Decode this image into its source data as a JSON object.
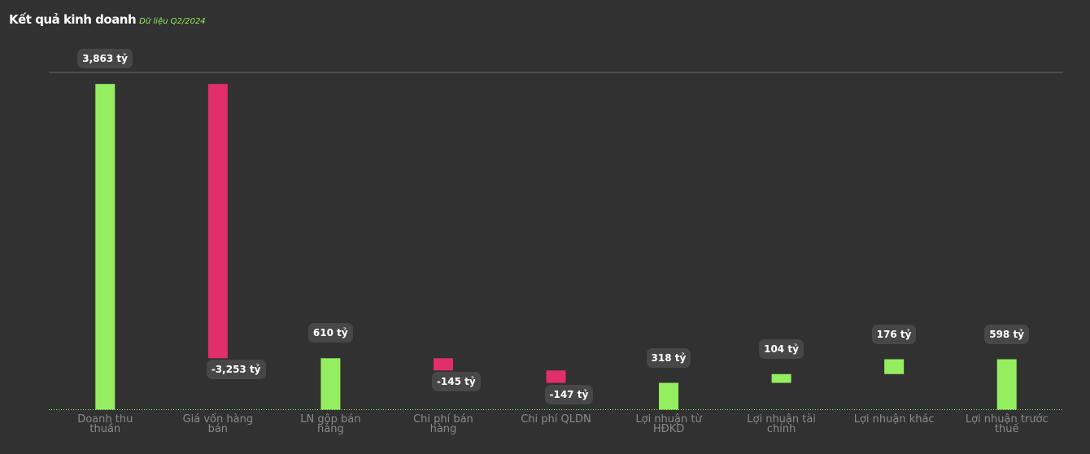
{
  "chart_data": {
    "type": "waterfall",
    "title": "Kết quả kinh doanh",
    "subtitle": "Dữ liệu Q2/2024",
    "categories": [
      "Doanh thu thuần",
      "Giá vốn hàng bán",
      "LN gộp bán hàng",
      "Chi phí bán hàng",
      "Chi phí QLDN",
      "Lợi nhuận từ HĐKD",
      "Lợi nhuận tài chính",
      "Lợi nhuận khác",
      "Lợi nhuận trước thuế"
    ],
    "values": [
      3863,
      -3253,
      610,
      -145,
      -147,
      318,
      104,
      176,
      598
    ],
    "value_labels": [
      "3,863 tỷ",
      "-3,253 tỷ",
      "610 tỷ",
      "-145 tỷ",
      "-147 tỷ",
      "318 tỷ",
      "104 tỷ",
      "176 tỷ",
      "598 tỷ"
    ],
    "measure": [
      "absolute",
      "relative",
      "total",
      "relative",
      "relative",
      "total",
      "relative",
      "relative",
      "total"
    ],
    "colors": {
      "positive": "#95ee5f",
      "negative": "#e02f6b"
    },
    "ylim": [
      0,
      4000
    ]
  }
}
